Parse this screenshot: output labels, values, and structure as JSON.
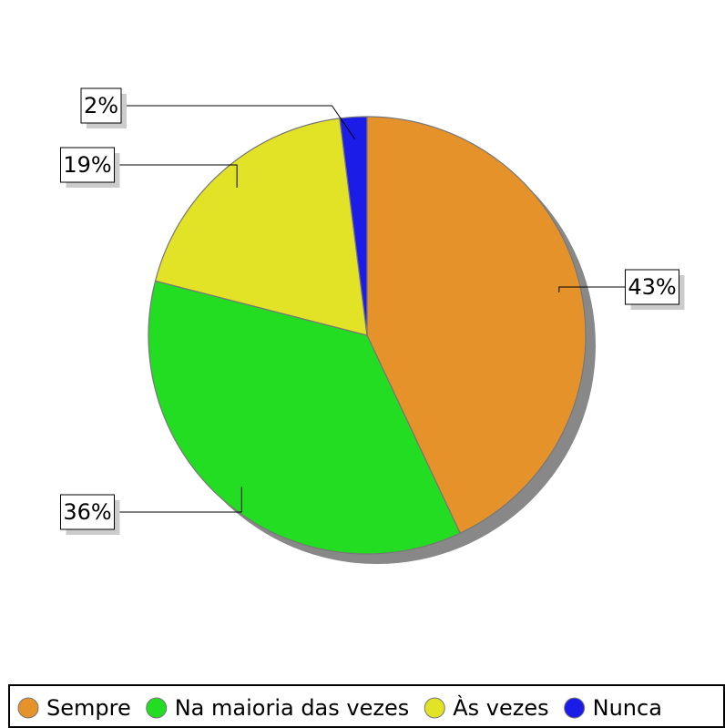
{
  "chart_data": {
    "type": "pie",
    "categories": [
      "Sempre",
      "Na maioria das vezes",
      "Às vezes",
      "Nunca"
    ],
    "values": [
      43,
      36,
      19,
      2
    ],
    "value_labels": [
      "43%",
      "36%",
      "19%",
      "2%"
    ],
    "colors": [
      "#e5922b",
      "#22dd22",
      "#e2e226",
      "#1c1ce8"
    ],
    "legend": "bottom"
  }
}
